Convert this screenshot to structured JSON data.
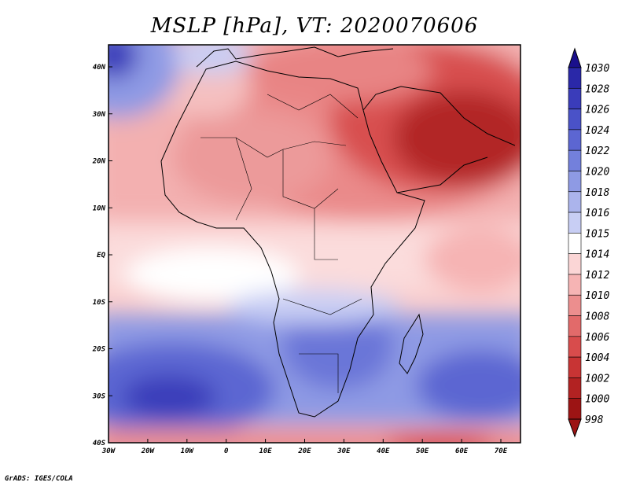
{
  "title": "MSLP [hPa], VT: 2020070606",
  "credit": "GrADS: IGES/COLA",
  "axes": {
    "y_ticks": [
      "40N",
      "30N",
      "20N",
      "10N",
      "EQ",
      "10S",
      "20S",
      "30S",
      "40S"
    ],
    "x_ticks": [
      "30W",
      "20W",
      "10W",
      "0",
      "10E",
      "20E",
      "30E",
      "40E",
      "50E",
      "60E",
      "70E"
    ]
  },
  "colorbar": {
    "levels": [
      "1030",
      "1028",
      "1026",
      "1024",
      "1022",
      "1020",
      "1018",
      "1016",
      "1015",
      "1014",
      "1012",
      "1010",
      "1008",
      "1006",
      "1004",
      "1002",
      "1000",
      "998"
    ],
    "colors": [
      "#1a0f8c",
      "#2a28a8",
      "#3a3cba",
      "#4a52c8",
      "#5c66d2",
      "#7380dc",
      "#8e9ae4",
      "#abb4ec",
      "#c8cef4",
      "#ffffff",
      "#fbd6d6",
      "#f6b4b4",
      "#ec8e8e",
      "#e26a6a",
      "#d84c4c",
      "#c83434",
      "#b22222",
      "#9c1414"
    ]
  },
  "colors": {
    "high": "#2b2da8",
    "low": "#a11818",
    "neutral": "#ffffff",
    "coast": "#000000"
  }
}
